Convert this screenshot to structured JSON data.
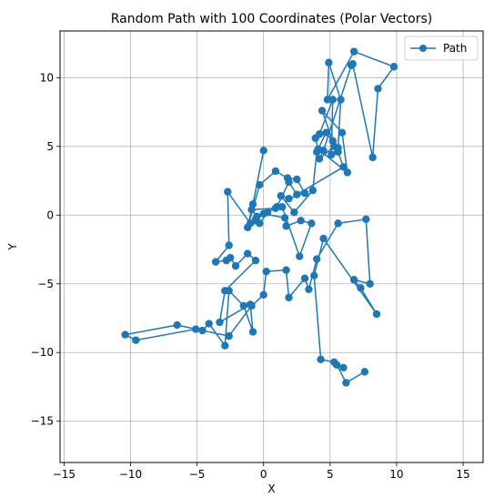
{
  "chart_data": {
    "type": "line",
    "title": "Random Path with 100 Coordinates (Polar Vectors)",
    "xlabel": "X",
    "ylabel": "Y",
    "xlim": [
      -15.3,
      16.5
    ],
    "ylim": [
      -18,
      13.4
    ],
    "xticks": [
      -15,
      -10,
      -5,
      0,
      5,
      10,
      15
    ],
    "yticks": [
      -15,
      -10,
      -5,
      0,
      5,
      10
    ],
    "grid": true,
    "legend_position": "top-right",
    "colors": {
      "series": "#1f77b4",
      "grid": "#b0b0b0",
      "frame": "#000000"
    },
    "series": [
      {
        "name": "Path",
        "marker": "circle",
        "x": [
          0.0,
          -0.8,
          -1.2,
          -0.3,
          0.9,
          1.8,
          2.5,
          3.1,
          1.9,
          1.3,
          2.3,
          3.7,
          4.0,
          4.7,
          5.2,
          4.4,
          5.9,
          6.3,
          4.1,
          3.9,
          4.2,
          5.2,
          5.1,
          5.6,
          5.8,
          4.9,
          4.8,
          6.8,
          9.8,
          8.6,
          8.2,
          6.7,
          6.6,
          4.5,
          4.2,
          5.3,
          5.6,
          6.0,
          2.5,
          1.9,
          1.0,
          0.3,
          -0.3,
          -0.6,
          0.0,
          1.6,
          1.7,
          2.8,
          3.6,
          2.7,
          1.4,
          0.9,
          -0.9,
          -0.5,
          -0.6,
          -1.0,
          -2.7,
          -2.6,
          -3.6,
          -2.8,
          -2.5,
          -2.1,
          -1.2,
          -0.6,
          -2.9,
          -3.3,
          -1.0,
          -0.8,
          -1.5,
          -2.6,
          -2.9,
          -4.1,
          -4.6,
          -6.5,
          -10.4,
          -9.6,
          -5.1,
          -2.6,
          -0.9,
          0.0,
          0.2,
          1.7,
          1.9,
          3.1,
          3.4,
          4.0,
          5.6,
          7.7,
          8.0,
          6.8,
          7.3,
          8.5,
          4.5,
          3.8,
          4.3,
          5.3,
          6.0,
          5.5,
          6.2,
          7.6
        ],
        "y": [
          4.7,
          0.8,
          -0.9,
          2.2,
          3.2,
          2.7,
          2.6,
          1.6,
          1.2,
          1.4,
          0.2,
          1.8,
          4.6,
          6.0,
          5.4,
          7.6,
          6.0,
          3.1,
          4.8,
          5.6,
          5.9,
          8.4,
          4.4,
          4.9,
          8.4,
          11.1,
          8.4,
          11.9,
          10.8,
          9.2,
          4.2,
          11.0,
          10.9,
          4.7,
          4.1,
          5.0,
          4.6,
          3.5,
          1.5,
          2.4,
          0.6,
          0.2,
          -0.6,
          -0.4,
          0.1,
          -0.2,
          -0.8,
          -0.4,
          -0.6,
          -3.0,
          0.6,
          0.5,
          0.4,
          -0.1,
          -0.3,
          -0.6,
          1.7,
          -2.2,
          -3.4,
          -3.3,
          -3.1,
          -3.7,
          -2.8,
          -3.3,
          -5.5,
          -7.8,
          -6.5,
          -8.5,
          -6.6,
          -5.5,
          -9.5,
          -7.9,
          -8.4,
          -8.0,
          -8.7,
          -9.1,
          -8.3,
          -8.8,
          -6.6,
          -5.8,
          -4.1,
          -4.0,
          -6.0,
          -4.6,
          -5.4,
          -3.2,
          -0.6,
          -0.3,
          -5.0,
          -4.7,
          -5.3,
          -7.2,
          -1.7,
          -4.4,
          -10.5,
          -10.7,
          -11.1,
          -10.9,
          -12.2,
          -11.4
        ]
      }
    ]
  }
}
